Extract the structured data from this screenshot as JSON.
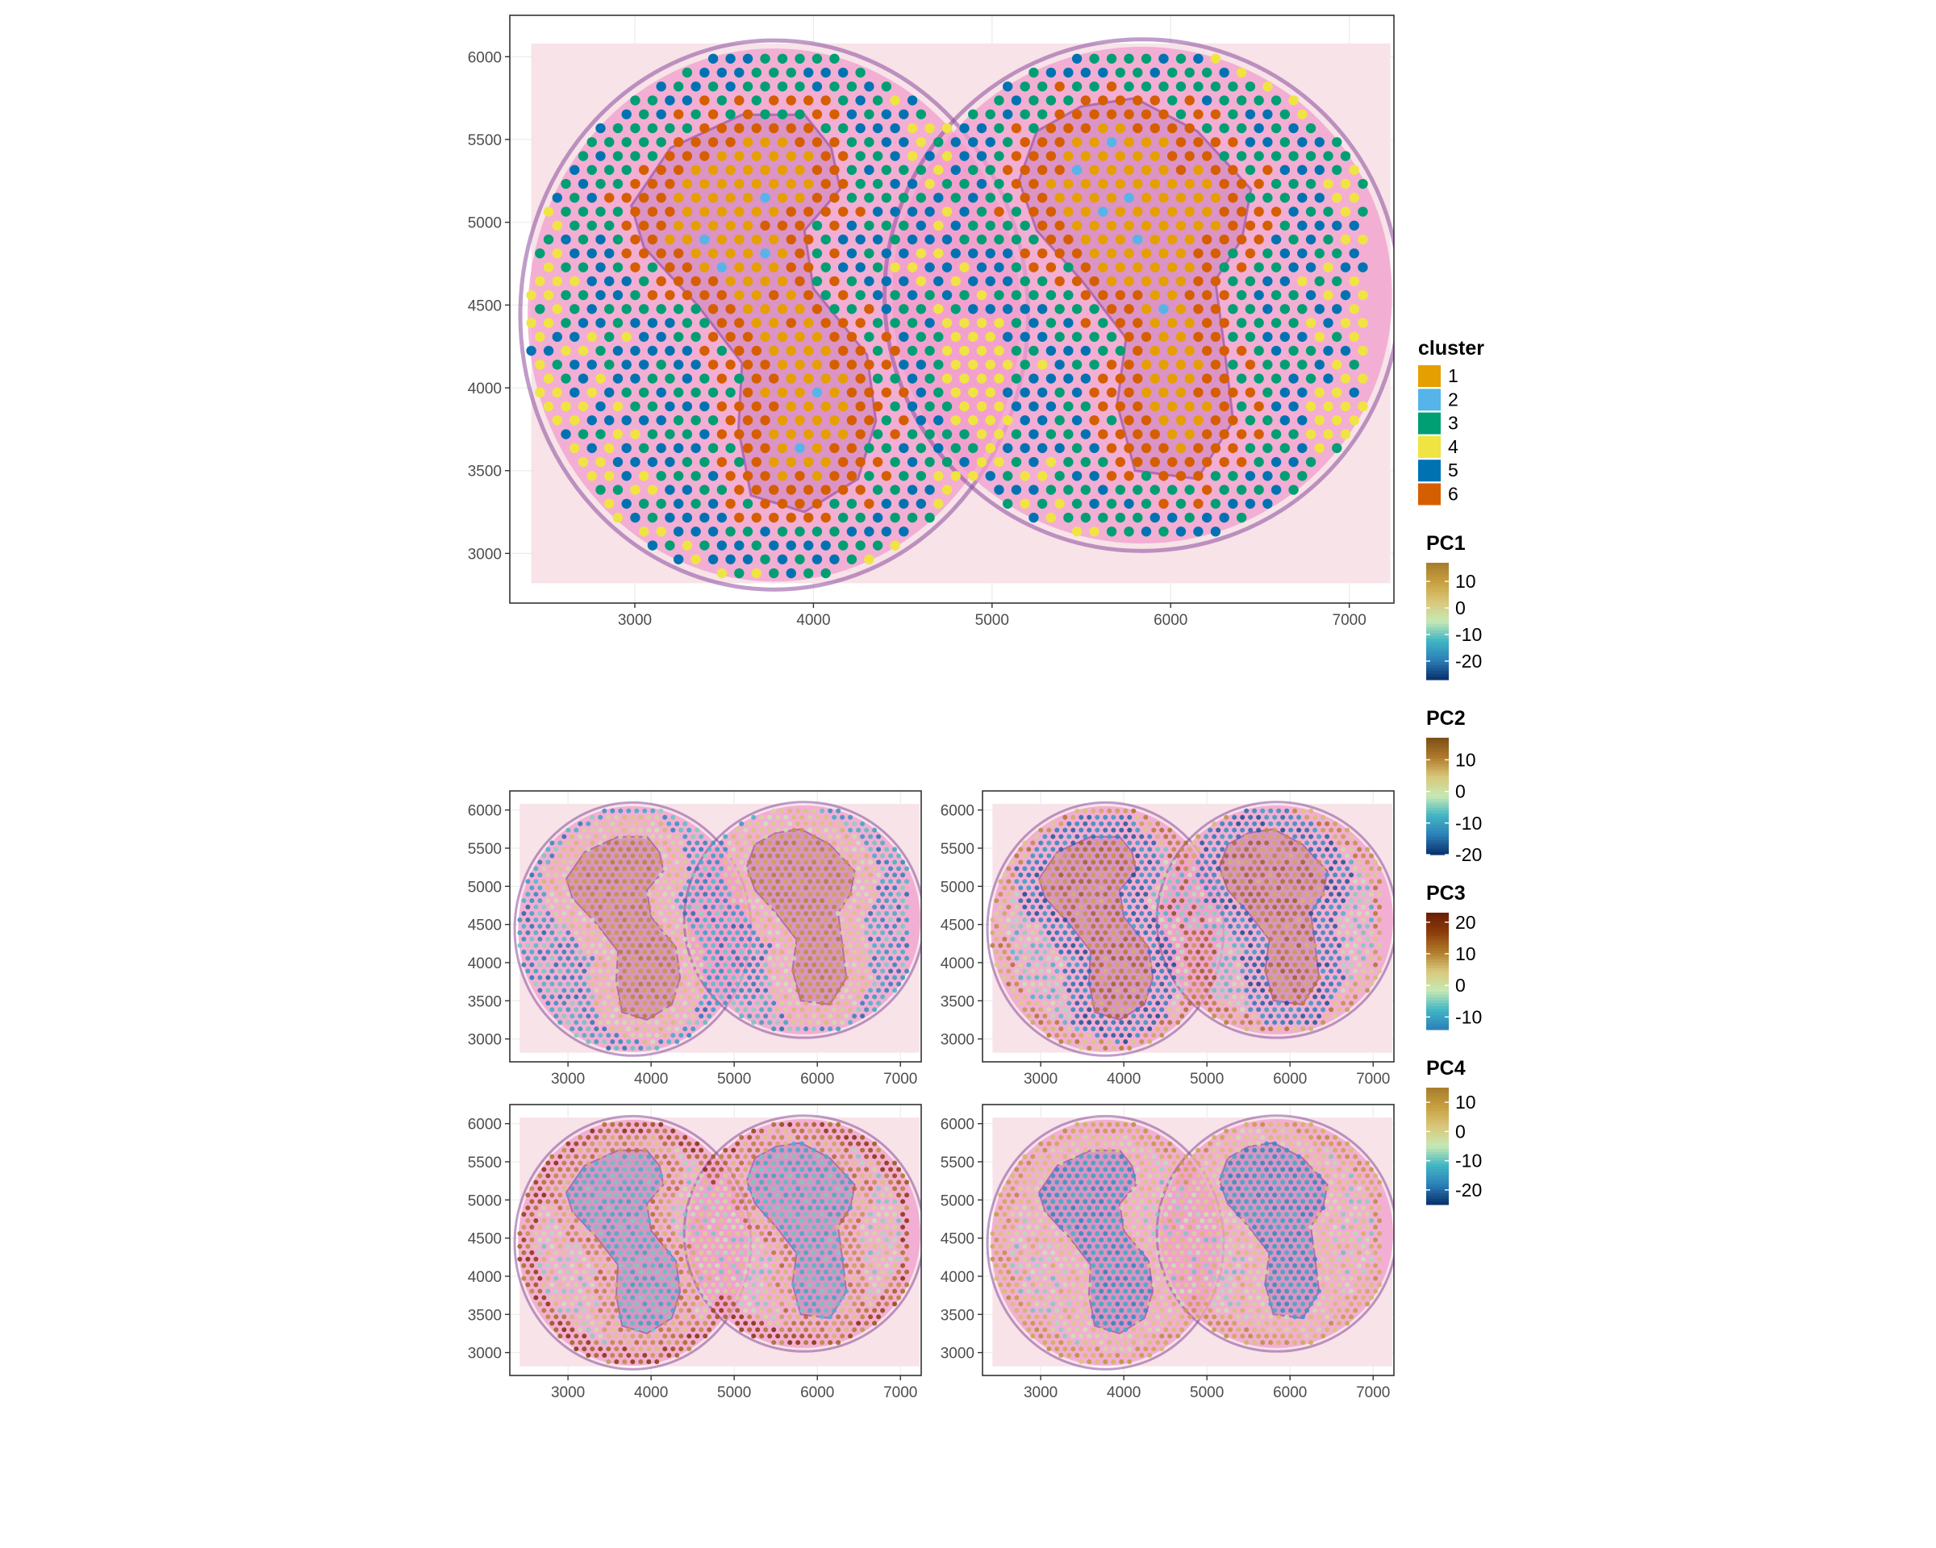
{
  "figure": "spatial-transcriptomics-panels",
  "chart_data": [
    {
      "type": "scatter",
      "name": "cluster",
      "title": "",
      "xlabel": "",
      "ylabel": "",
      "xlim": [
        2300,
        7250
      ],
      "ylim": [
        2700,
        6250
      ],
      "x_ticks": [
        3000,
        4000,
        5000,
        6000,
        7000
      ],
      "y_ticks": [
        3000,
        3500,
        4000,
        4500,
        5000,
        5500,
        6000
      ],
      "x_tick_labels": [
        "3000",
        "4000",
        "5000",
        "6000",
        "7000"
      ],
      "y_tick_labels": [
        "3000",
        "3500",
        "4000",
        "4500",
        "5000",
        "5500",
        "6000"
      ],
      "background": "tissue H&E image",
      "grid": true,
      "legend": {
        "title": "cluster",
        "position": "right",
        "entries": [
          {
            "label": "1",
            "color": "#E69F00"
          },
          {
            "label": "2",
            "color": "#56B4E9"
          },
          {
            "label": "3",
            "color": "#009E73"
          },
          {
            "label": "4",
            "color": "#F0E442"
          },
          {
            "label": "5",
            "color": "#0072B2"
          },
          {
            "label": "6",
            "color": "#D55E00"
          }
        ]
      }
    },
    {
      "type": "scatter",
      "name": "PC1",
      "xlim": [
        2300,
        7250
      ],
      "ylim": [
        2700,
        6250
      ],
      "x_ticks": [
        3000,
        4000,
        5000,
        6000,
        7000
      ],
      "y_ticks": [
        3000,
        3500,
        4000,
        4500,
        5000,
        5500,
        6000
      ],
      "x_tick_labels": [
        "3000",
        "4000",
        "5000",
        "6000",
        "7000"
      ],
      "y_tick_labels": [
        "3000",
        "3500",
        "4000",
        "4500",
        "5000",
        "5500",
        "6000"
      ],
      "color_scale": {
        "title": "PC1",
        "min": -27,
        "max": 17,
        "ticks": [
          10,
          0,
          -10,
          -20
        ],
        "tick_labels": [
          "10",
          "0",
          "-10",
          "-20"
        ]
      }
    },
    {
      "type": "scatter",
      "name": "PC2",
      "xlim": [
        2300,
        7250
      ],
      "ylim": [
        2700,
        6250
      ],
      "x_ticks": [
        3000,
        4000,
        5000,
        6000,
        7000
      ],
      "y_ticks": [
        3000,
        3500,
        4000,
        4500,
        5000,
        5500,
        6000
      ],
      "x_tick_labels": [
        "3000",
        "4000",
        "5000",
        "6000",
        "7000"
      ],
      "y_tick_labels": [
        "3000",
        "3500",
        "4000",
        "4500",
        "5000",
        "5500",
        "6000"
      ],
      "color_scale": {
        "title": "PC2",
        "min": -20,
        "max": 17,
        "ticks": [
          10,
          0,
          -10,
          -20
        ],
        "tick_labels": [
          "10",
          "0",
          "-10",
          "-20"
        ]
      }
    },
    {
      "type": "scatter",
      "name": "PC3",
      "xlim": [
        2300,
        7250
      ],
      "ylim": [
        2700,
        6250
      ],
      "x_ticks": [
        3000,
        4000,
        5000,
        6000,
        7000
      ],
      "y_ticks": [
        3000,
        3500,
        4000,
        4500,
        5000,
        5500,
        6000
      ],
      "x_tick_labels": [
        "3000",
        "4000",
        "5000",
        "6000",
        "7000"
      ],
      "y_tick_labels": [
        "3000",
        "3500",
        "4000",
        "4500",
        "5000",
        "5500",
        "6000"
      ],
      "color_scale": {
        "title": "PC3",
        "min": -14,
        "max": 23,
        "ticks": [
          20,
          10,
          0,
          -10
        ],
        "tick_labels": [
          "20",
          "10",
          "0",
          "-10"
        ]
      }
    },
    {
      "type": "scatter",
      "name": "PC4",
      "xlim": [
        2300,
        7250
      ],
      "ylim": [
        2700,
        6250
      ],
      "x_ticks": [
        3000,
        4000,
        5000,
        6000,
        7000
      ],
      "y_ticks": [
        3000,
        3500,
        4000,
        4500,
        5000,
        5500,
        6000
      ],
      "x_tick_labels": [
        "3000",
        "4000",
        "5000",
        "6000",
        "7000"
      ],
      "y_tick_labels": [
        "3000",
        "3500",
        "4000",
        "4500",
        "5000",
        "5500",
        "6000"
      ],
      "color_scale": {
        "title": "PC4",
        "min": -25,
        "max": 15,
        "ticks": [
          10,
          0,
          -10,
          -20
        ],
        "tick_labels": [
          "10",
          "0",
          "-10",
          "-20"
        ]
      }
    }
  ],
  "colors": {
    "tissue_bg": "#f7e3e8",
    "tissue_pink": "#f29ccd",
    "tissue_purple": "#8d4a9c",
    "panel_border": "#333333",
    "grid": "#ebebeb"
  },
  "colormaps": {
    "PC1": [
      "#08306b",
      "#2c7fb8",
      "#41b6c4",
      "#c7e9b4",
      "#d9c77a",
      "#c8a040",
      "#a67c2e"
    ],
    "PC2": [
      "#08306b",
      "#2c7fb8",
      "#41b6c4",
      "#c7e9b4",
      "#d9c77a",
      "#b07a2a",
      "#7a4e18"
    ],
    "PC3": [
      "#2c7fb8",
      "#41b6c4",
      "#c7e9b4",
      "#d9c77a",
      "#b07a2a",
      "#8c3b0a",
      "#6b1d05"
    ],
    "PC4": [
      "#08306b",
      "#2c7fb8",
      "#41b6c4",
      "#c7e9b4",
      "#d9c77a",
      "#c8a040",
      "#a67c2e"
    ]
  }
}
